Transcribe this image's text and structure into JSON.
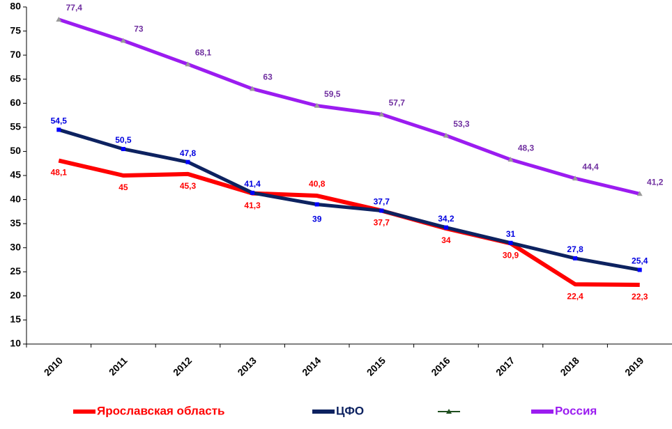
{
  "chart_data": {
    "type": "line",
    "categories": [
      "2010",
      "2011",
      "2012",
      "2013",
      "2014",
      "2015",
      "2016",
      "2017",
      "2018",
      "2019"
    ],
    "ylim": [
      10,
      80
    ],
    "yticks": [
      10,
      15,
      20,
      25,
      30,
      35,
      40,
      45,
      50,
      55,
      60,
      65,
      70,
      75,
      80
    ],
    "grid": false,
    "legend": "bottom",
    "series": [
      {
        "name": "Ярославская область",
        "color": "#ff0000",
        "label_color": "#ff0000",
        "values": [
          48.1,
          45,
          45.3,
          41.3,
          40.8,
          37.7,
          34,
          30.9,
          22.4,
          22.3
        ],
        "value_labels": [
          "48,1",
          "45",
          "45,3",
          "41,3",
          "40,8",
          "37,7",
          "34",
          "30,9",
          "22,4",
          "22,3"
        ]
      },
      {
        "name": "ЦФО",
        "color": "#0d2260",
        "label_color": "#0000e0",
        "values": [
          54.5,
          50.5,
          47.8,
          41.4,
          39,
          37.7,
          34.2,
          31,
          27.8,
          25.4
        ],
        "value_labels": [
          "54,5",
          "50,5",
          "47,8",
          "41,4",
          "39",
          "37,7",
          "34,2",
          "31",
          "27,8",
          "25,4"
        ]
      },
      {
        "name": "Россия",
        "color": "#9b1cf0",
        "label_color": "#7030a0",
        "values": [
          77.4,
          73,
          68.1,
          63,
          59.5,
          57.7,
          53.3,
          48.3,
          44.4,
          41.2
        ],
        "value_labels": [
          "77,4",
          "73",
          "68,1",
          "63",
          "59,5",
          "57,7",
          "53,3",
          "48,3",
          "44,4",
          "41,2"
        ]
      }
    ]
  }
}
